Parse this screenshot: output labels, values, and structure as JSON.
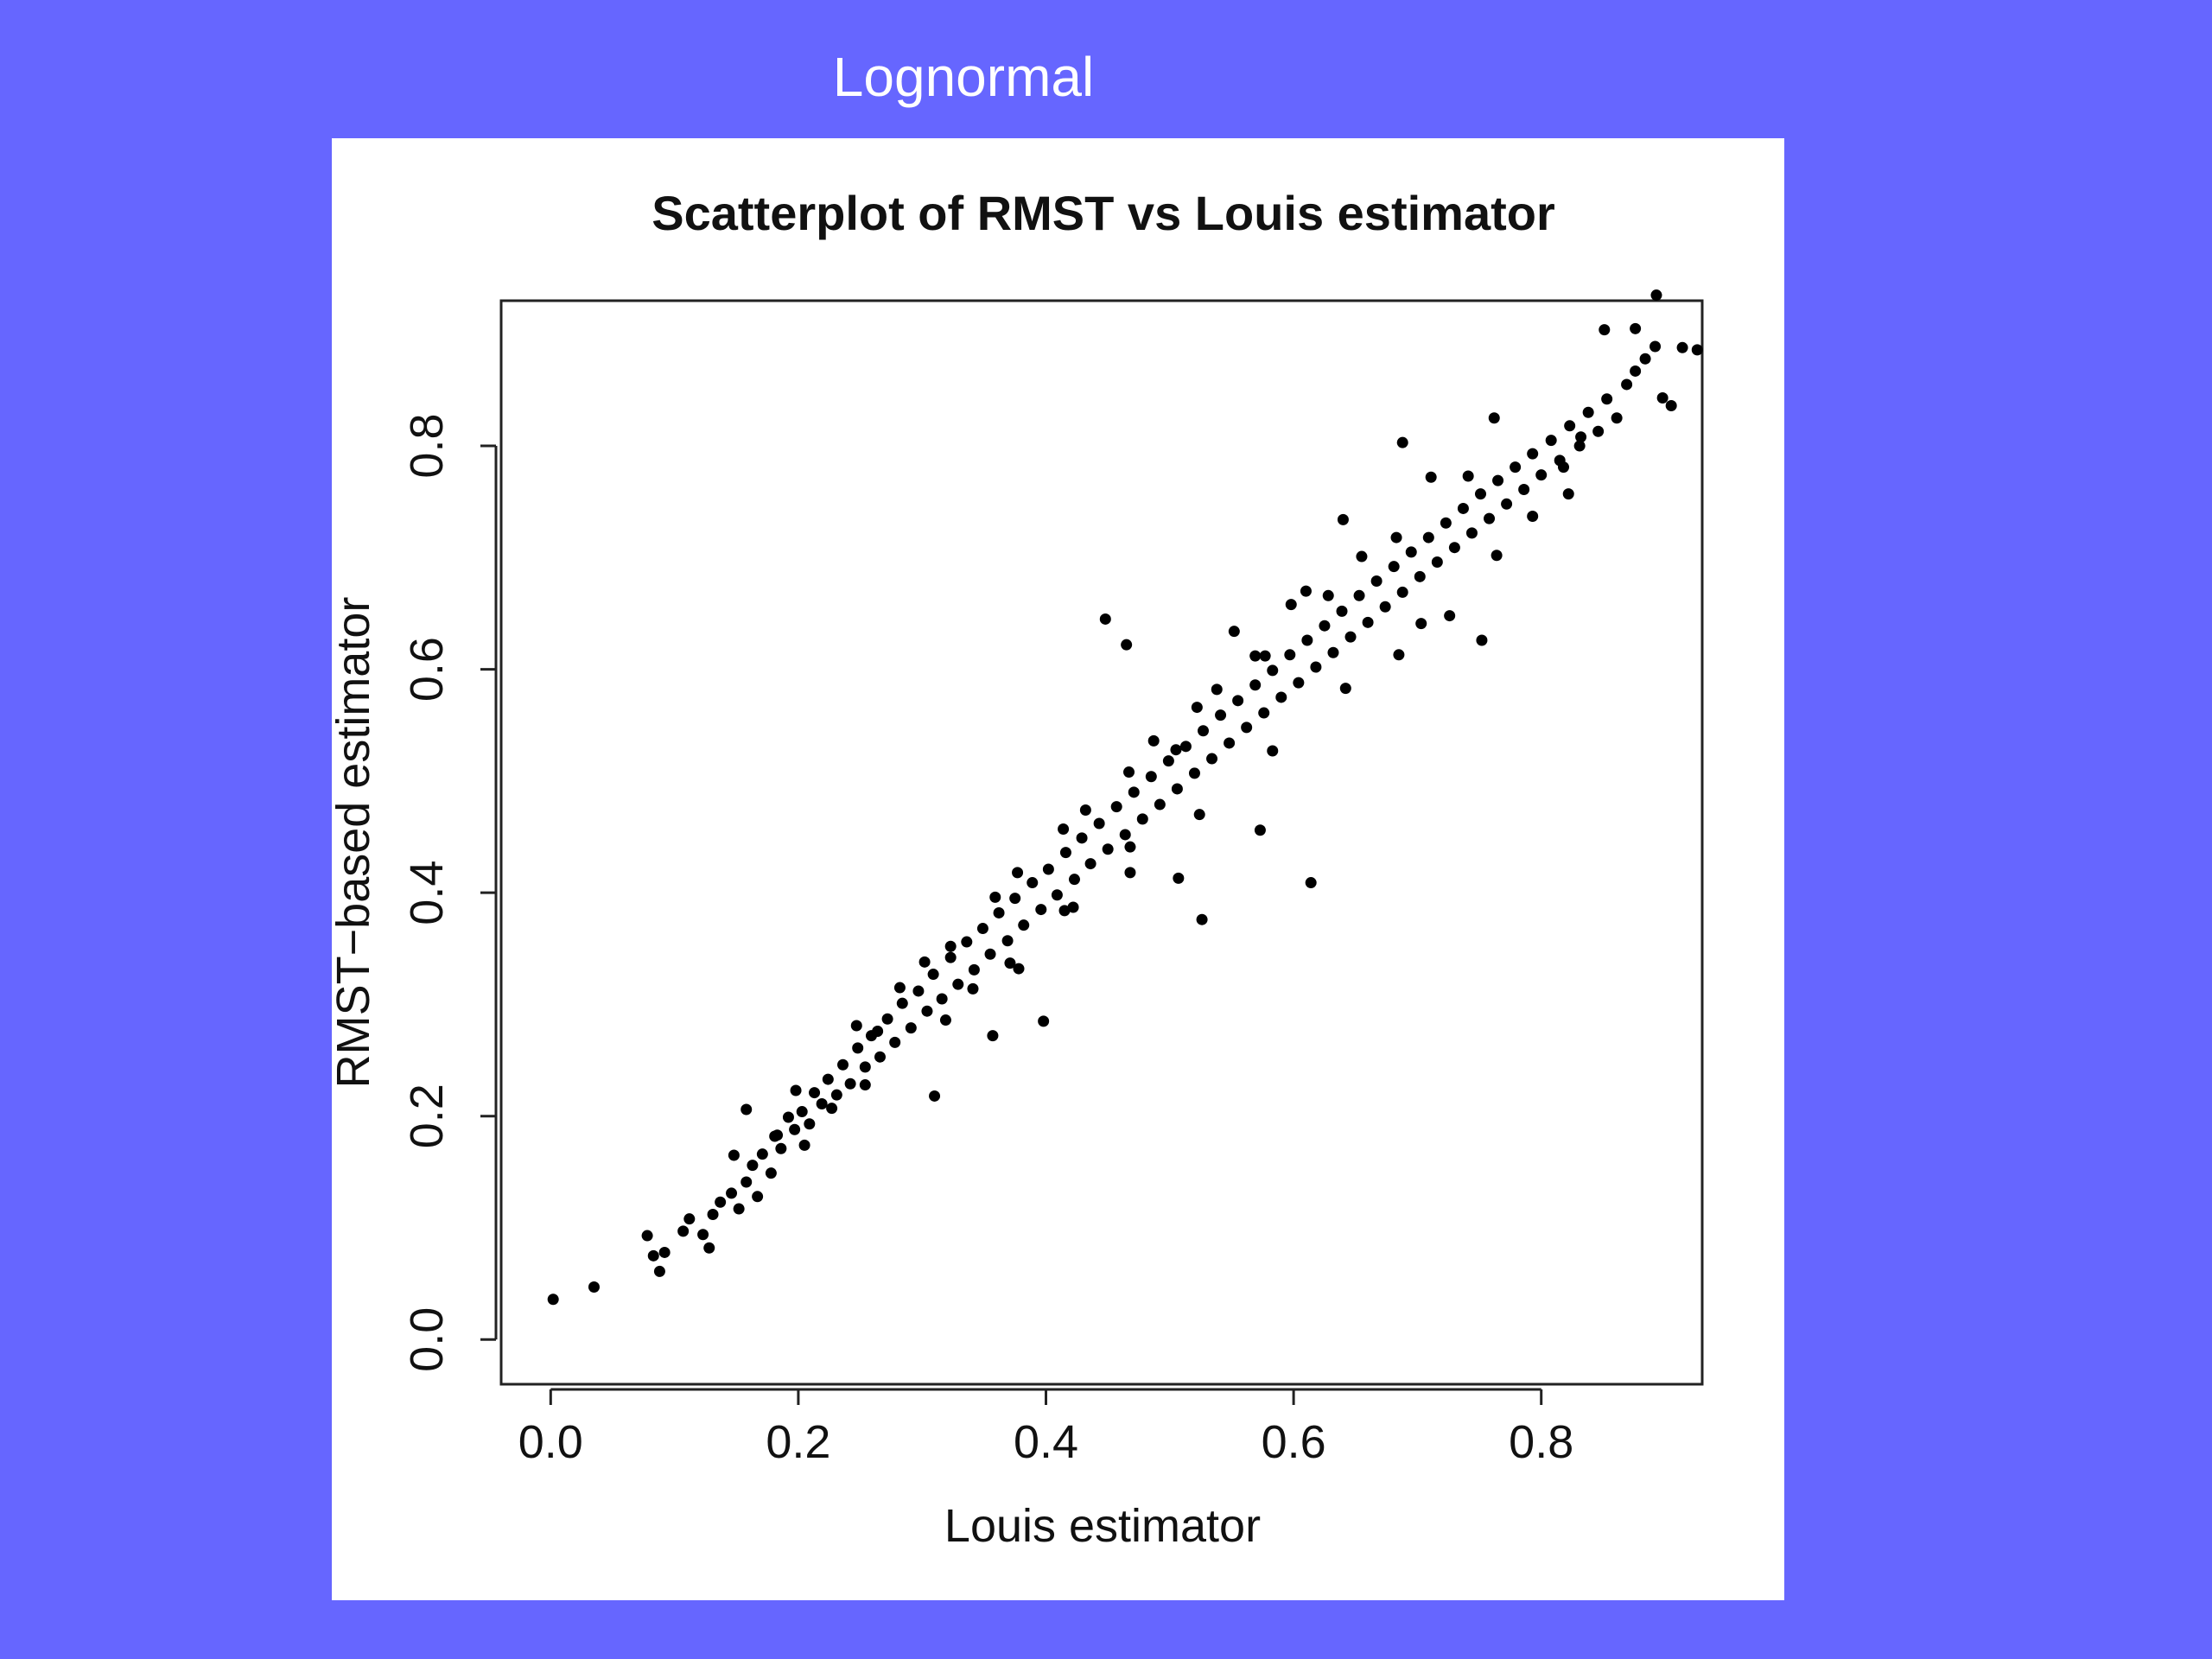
{
  "slide": {
    "title": "Lognormal",
    "background_color": "#6666ff",
    "title_color": "#ffffff"
  },
  "chart_data": {
    "type": "scatter",
    "title": "Scatterplot of RMST vs Louis estimator",
    "xlabel": "Louis estimator",
    "ylabel": "RMST−based estimator",
    "xlim": [
      -0.04,
      0.93
    ],
    "ylim": [
      -0.04,
      0.93
    ],
    "xticks": [
      0.0,
      0.2,
      0.4,
      0.6,
      0.8
    ],
    "yticks": [
      0.0,
      0.2,
      0.4,
      0.6,
      0.8
    ],
    "xtick_labels": [
      "0.0",
      "0.2",
      "0.4",
      "0.6",
      "0.8"
    ],
    "ytick_labels": [
      "0.0",
      "0.2",
      "0.4",
      "0.6",
      "0.8"
    ],
    "marker_color": "#000000",
    "grid": false,
    "legend": "none",
    "series": [
      {
        "points": [
          [
            0.002,
            0.036
          ],
          [
            0.035,
            0.047
          ],
          [
            0.078,
            0.093
          ],
          [
            0.083,
            0.075
          ],
          [
            0.088,
            0.061
          ],
          [
            0.092,
            0.078
          ],
          [
            0.107,
            0.097
          ],
          [
            0.112,
            0.108
          ],
          [
            0.123,
            0.094
          ],
          [
            0.128,
            0.082
          ],
          [
            0.131,
            0.112
          ],
          [
            0.137,
            0.123
          ],
          [
            0.146,
            0.131
          ],
          [
            0.152,
            0.117
          ],
          [
            0.158,
            0.141
          ],
          [
            0.163,
            0.156
          ],
          [
            0.167,
            0.128
          ],
          [
            0.171,
            0.166
          ],
          [
            0.178,
            0.149
          ],
          [
            0.181,
            0.182
          ],
          [
            0.186,
            0.171
          ],
          [
            0.192,
            0.199
          ],
          [
            0.197,
            0.188
          ],
          [
            0.203,
            0.204
          ],
          [
            0.209,
            0.193
          ],
          [
            0.213,
            0.221
          ],
          [
            0.219,
            0.211
          ],
          [
            0.224,
            0.233
          ],
          [
            0.231,
            0.219
          ],
          [
            0.236,
            0.246
          ],
          [
            0.242,
            0.229
          ],
          [
            0.248,
            0.261
          ],
          [
            0.254,
            0.244
          ],
          [
            0.259,
            0.272
          ],
          [
            0.266,
            0.253
          ],
          [
            0.272,
            0.287
          ],
          [
            0.278,
            0.266
          ],
          [
            0.284,
            0.301
          ],
          [
            0.291,
            0.279
          ],
          [
            0.297,
            0.312
          ],
          [
            0.304,
            0.294
          ],
          [
            0.309,
            0.327
          ],
          [
            0.316,
            0.305
          ],
          [
            0.323,
            0.342
          ],
          [
            0.329,
            0.318
          ],
          [
            0.336,
            0.356
          ],
          [
            0.342,
            0.331
          ],
          [
            0.349,
            0.368
          ],
          [
            0.355,
            0.345
          ],
          [
            0.362,
            0.382
          ],
          [
            0.369,
            0.357
          ],
          [
            0.375,
            0.395
          ],
          [
            0.382,
            0.371
          ],
          [
            0.389,
            0.409
          ],
          [
            0.396,
            0.385
          ],
          [
            0.402,
            0.421
          ],
          [
            0.409,
            0.398
          ],
          [
            0.416,
            0.436
          ],
          [
            0.423,
            0.412
          ],
          [
            0.429,
            0.449
          ],
          [
            0.436,
            0.426
          ],
          [
            0.443,
            0.462
          ],
          [
            0.45,
            0.439
          ],
          [
            0.457,
            0.477
          ],
          [
            0.464,
            0.452
          ],
          [
            0.471,
            0.49
          ],
          [
            0.478,
            0.466
          ],
          [
            0.485,
            0.504
          ],
          [
            0.492,
            0.479
          ],
          [
            0.499,
            0.518
          ],
          [
            0.506,
            0.493
          ],
          [
            0.513,
            0.531
          ],
          [
            0.52,
            0.507
          ],
          [
            0.527,
            0.545
          ],
          [
            0.534,
            0.52
          ],
          [
            0.541,
            0.559
          ],
          [
            0.548,
            0.534
          ],
          [
            0.555,
            0.572
          ],
          [
            0.562,
            0.548
          ],
          [
            0.569,
            0.586
          ],
          [
            0.576,
            0.561
          ],
          [
            0.583,
            0.599
          ],
          [
            0.59,
            0.575
          ],
          [
            0.597,
            0.613
          ],
          [
            0.604,
            0.588
          ],
          [
            0.611,
            0.626
          ],
          [
            0.618,
            0.602
          ],
          [
            0.625,
            0.639
          ],
          [
            0.632,
            0.615
          ],
          [
            0.639,
            0.652
          ],
          [
            0.646,
            0.629
          ],
          [
            0.653,
            0.666
          ],
          [
            0.66,
            0.642
          ],
          [
            0.667,
            0.679
          ],
          [
            0.674,
            0.656
          ],
          [
            0.681,
            0.692
          ],
          [
            0.688,
            0.669
          ],
          [
            0.695,
            0.705
          ],
          [
            0.702,
            0.683
          ],
          [
            0.709,
            0.718
          ],
          [
            0.716,
            0.696
          ],
          [
            0.723,
            0.731
          ],
          [
            0.73,
            0.709
          ],
          [
            0.737,
            0.744
          ],
          [
            0.744,
            0.722
          ],
          [
            0.751,
            0.757
          ],
          [
            0.758,
            0.735
          ],
          [
            0.765,
            0.769
          ],
          [
            0.772,
            0.748
          ],
          [
            0.779,
            0.781
          ],
          [
            0.786,
            0.761
          ],
          [
            0.793,
            0.793
          ],
          [
            0.8,
            0.774
          ],
          [
            0.808,
            0.805
          ],
          [
            0.815,
            0.787
          ],
          [
            0.823,
            0.818
          ],
          [
            0.831,
            0.8
          ],
          [
            0.838,
            0.83
          ],
          [
            0.846,
            0.813
          ],
          [
            0.853,
            0.842
          ],
          [
            0.861,
            0.825
          ],
          [
            0.869,
            0.855
          ],
          [
            0.876,
            0.867
          ],
          [
            0.884,
            0.878
          ],
          [
            0.892,
            0.889
          ],
          [
            0.898,
            0.843
          ],
          [
            0.905,
            0.836
          ],
          [
            0.914,
            0.888
          ],
          [
            0.926,
            0.886
          ],
          [
            0.893,
            0.935
          ],
          [
            0.876,
            0.905
          ],
          [
            0.851,
            0.904
          ],
          [
            0.832,
            0.808
          ],
          [
            0.818,
            0.781
          ],
          [
            0.793,
            0.737
          ],
          [
            0.688,
            0.803
          ],
          [
            0.762,
            0.825
          ],
          [
            0.614,
            0.409
          ],
          [
            0.526,
            0.376
          ],
          [
            0.507,
            0.413
          ],
          [
            0.573,
            0.456
          ],
          [
            0.448,
            0.645
          ],
          [
            0.465,
            0.622
          ],
          [
            0.31,
            0.218
          ],
          [
            0.357,
            0.272
          ],
          [
            0.398,
            0.285
          ],
          [
            0.158,
            0.206
          ],
          [
            0.183,
            0.183
          ],
          [
            0.61,
            0.67
          ],
          [
            0.752,
            0.626
          ],
          [
            0.726,
            0.648
          ],
          [
            0.685,
            0.613
          ],
          [
            0.64,
            0.734
          ],
          [
            0.569,
            0.612
          ],
          [
            0.552,
            0.634
          ],
          [
            0.505,
            0.528
          ],
          [
            0.468,
            0.441
          ],
          [
            0.422,
            0.387
          ],
          [
            0.378,
            0.332
          ],
          [
            0.341,
            0.314
          ],
          [
            0.264,
            0.276
          ],
          [
            0.227,
            0.207
          ],
          [
            0.711,
            0.772
          ],
          [
            0.655,
            0.701
          ],
          [
            0.598,
            0.658
          ],
          [
            0.538,
            0.582
          ],
          [
            0.487,
            0.536
          ],
          [
            0.432,
            0.474
          ],
          [
            0.377,
            0.418
          ],
          [
            0.323,
            0.352
          ],
          [
            0.282,
            0.315
          ],
          [
            0.205,
            0.174
          ],
          [
            0.254,
            0.228
          ],
          [
            0.319,
            0.286
          ],
          [
            0.371,
            0.337
          ],
          [
            0.415,
            0.384
          ],
          [
            0.468,
            0.418
          ],
          [
            0.524,
            0.47
          ],
          [
            0.583,
            0.527
          ],
          [
            0.642,
            0.583
          ],
          [
            0.703,
            0.641
          ],
          [
            0.764,
            0.702
          ],
          [
            0.822,
            0.757
          ],
          [
            0.741,
            0.773
          ],
          [
            0.683,
            0.718
          ],
          [
            0.628,
            0.666
          ],
          [
            0.577,
            0.612
          ],
          [
            0.522,
            0.566
          ],
          [
            0.467,
            0.508
          ],
          [
            0.414,
            0.457
          ],
          [
            0.359,
            0.396
          ],
          [
            0.302,
            0.338
          ],
          [
            0.247,
            0.281
          ],
          [
            0.198,
            0.223
          ],
          [
            0.148,
            0.165
          ]
        ]
      }
    ]
  }
}
